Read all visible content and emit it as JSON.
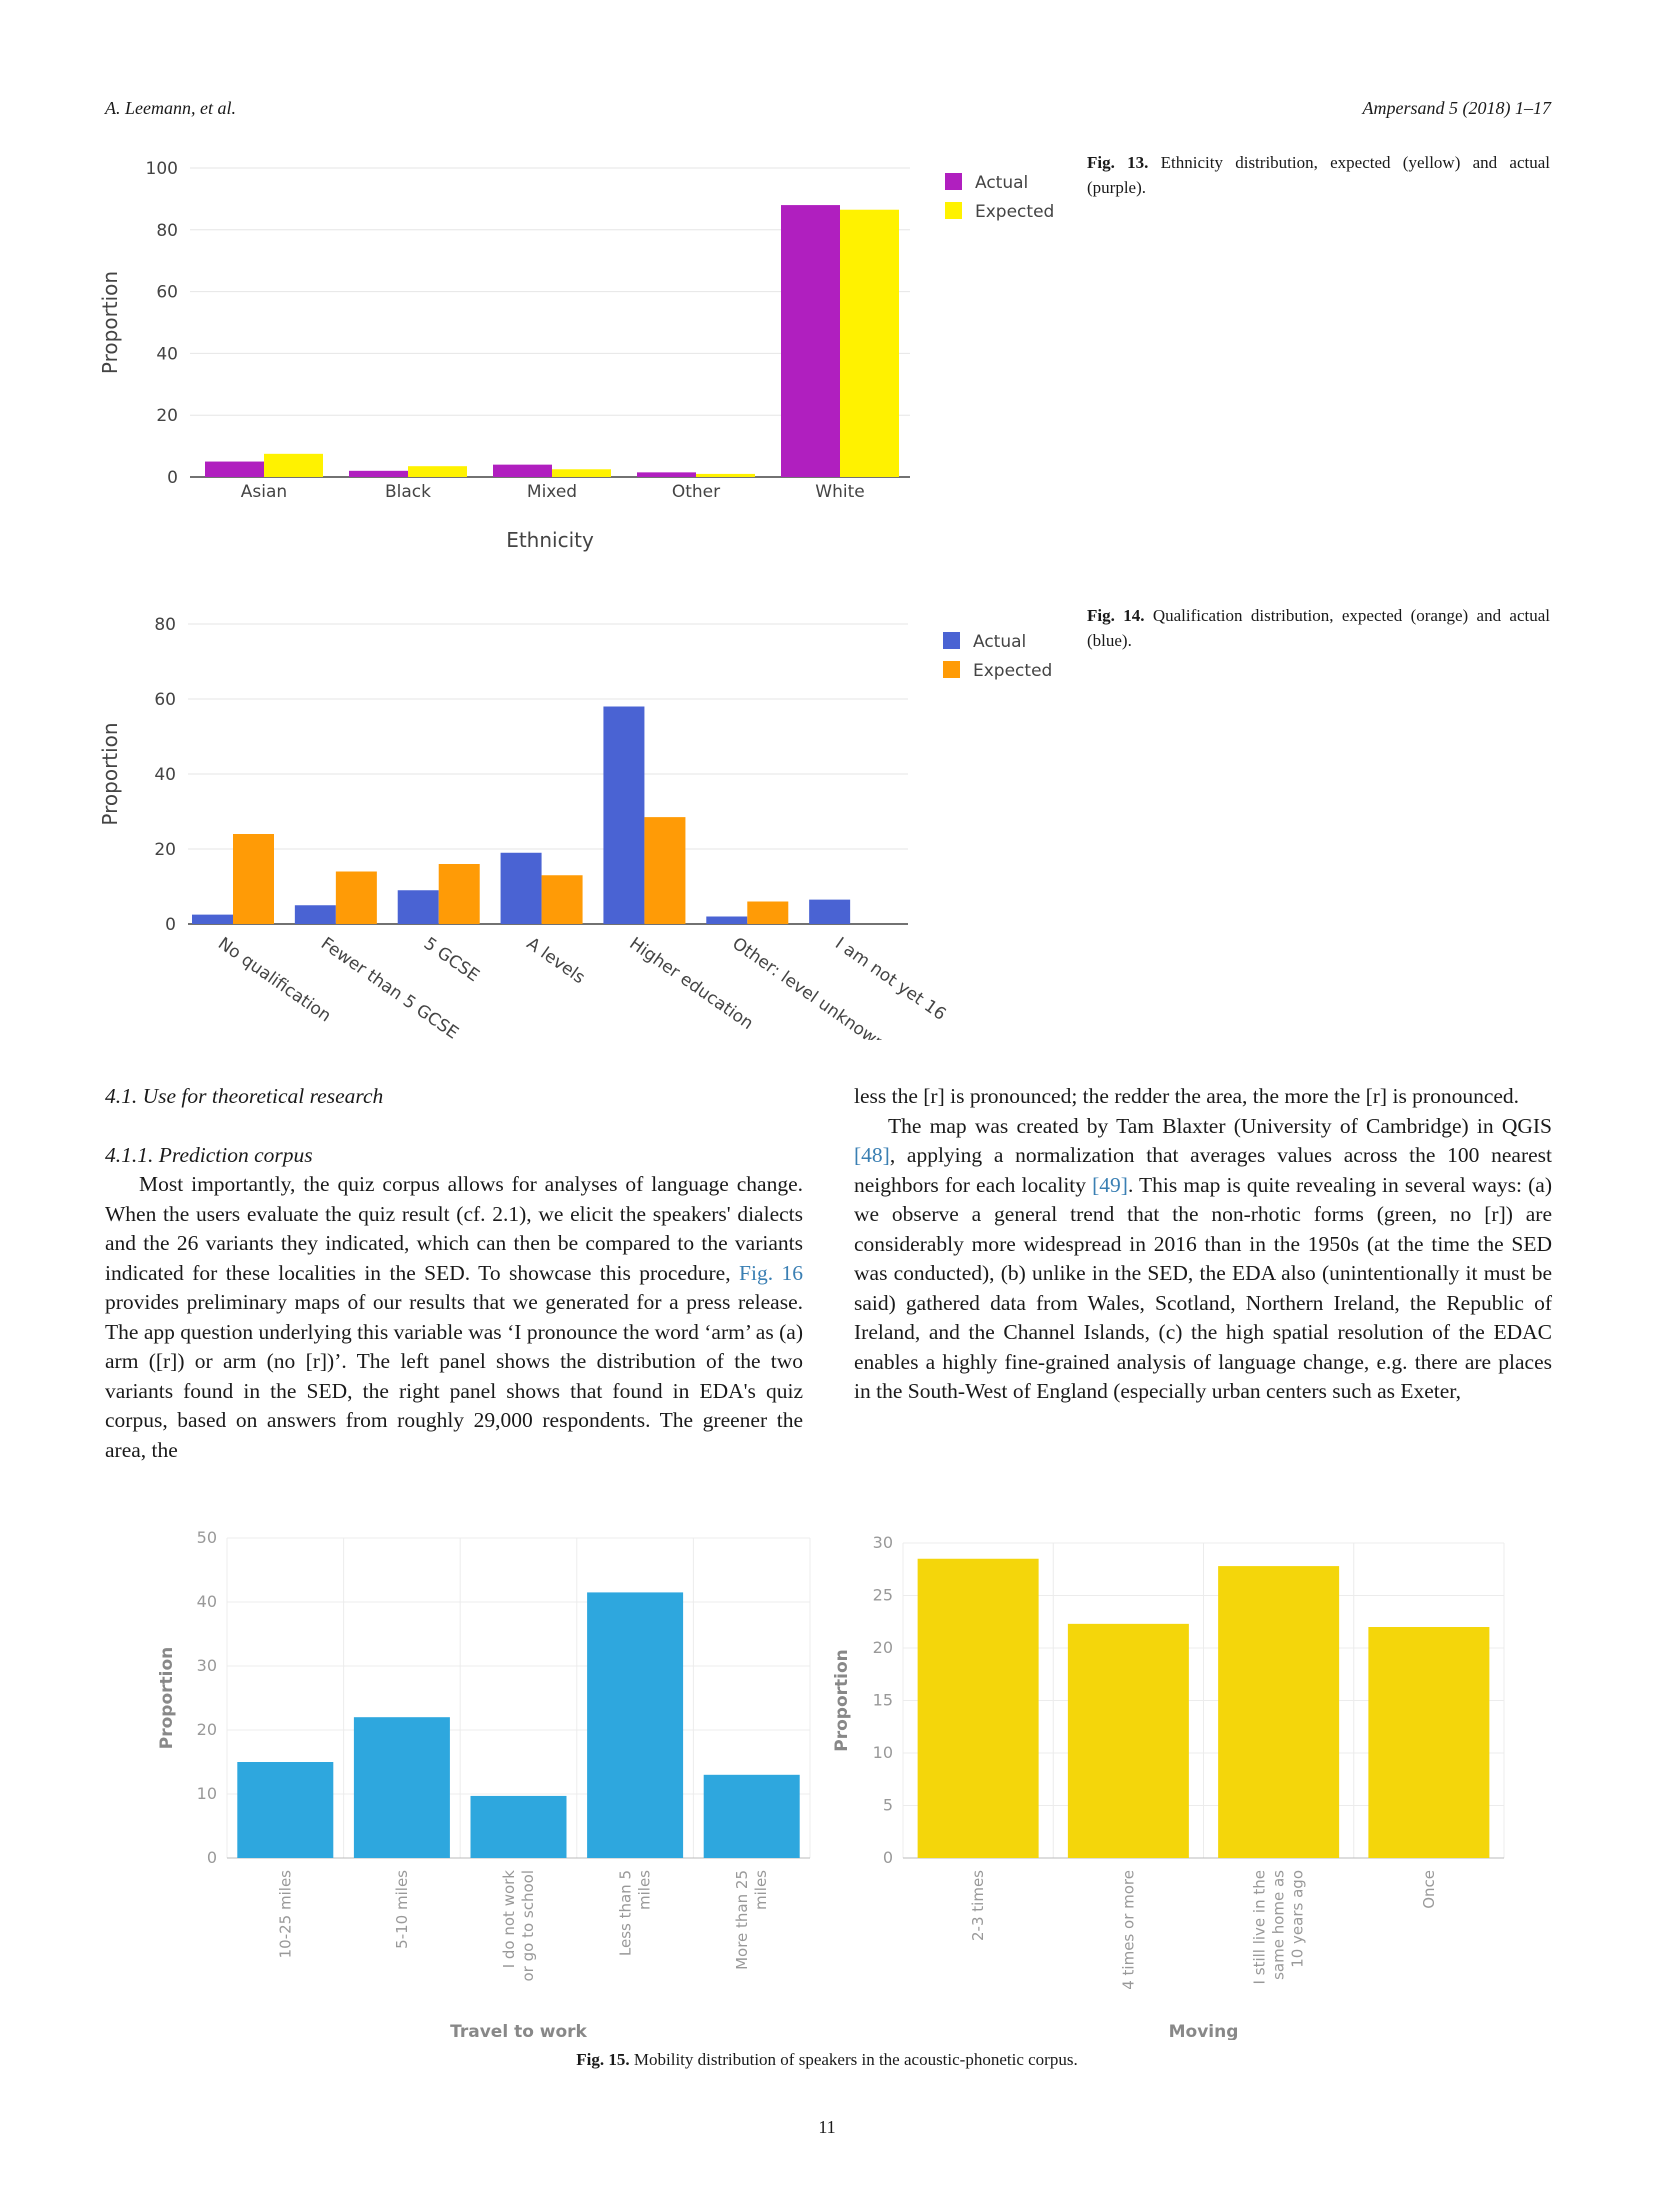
{
  "header": {
    "left": "A. Leemann, et al.",
    "right": "Ampersand 5 (2018) 1–17"
  },
  "fig13": {
    "label": "Fig. 13.",
    "caption": "Ethnicity distribution, expected (yellow) and actual (purple).",
    "chart_data": {
      "type": "bar",
      "categories": [
        "Asian",
        "Black",
        "Mixed",
        "Other",
        "White"
      ],
      "series": [
        {
          "name": "Actual",
          "values": [
            5,
            2,
            4,
            1.5,
            88
          ],
          "color": "#b01fbf"
        },
        {
          "name": "Expected",
          "values": [
            7.5,
            3.5,
            2.5,
            1,
            86.5
          ],
          "color": "#fff200"
        }
      ],
      "xlabel": "Ethnicity",
      "ylabel": "Proportion",
      "ylim": [
        0,
        100
      ],
      "yticks": [
        "0",
        "20",
        "40",
        "60",
        "80",
        "100"
      ],
      "grid": true,
      "legend": "right"
    }
  },
  "fig14": {
    "label": "Fig. 14.",
    "caption": "Qualification distribution, expected (orange) and actual (blue).",
    "chart_data": {
      "type": "bar",
      "categories": [
        "No qualification",
        "Fewer than 5 GCSE",
        "5 GCSE",
        "A levels",
        "Higher education",
        "Other: level unknown",
        "I am not yet 16"
      ],
      "series": [
        {
          "name": "Actual",
          "values": [
            2.5,
            5,
            9,
            19,
            58,
            2,
            6.5
          ],
          "color": "#4a63d3"
        },
        {
          "name": "Expected",
          "values": [
            24,
            14,
            16,
            13,
            28.5,
            6,
            0
          ],
          "color": "#ff9b06"
        }
      ],
      "xlabel": "",
      "ylabel": "Proportion",
      "ylim": [
        0,
        80
      ],
      "yticks": [
        "0",
        "20",
        "40",
        "60",
        "80"
      ],
      "grid": true,
      "legend": "right"
    }
  },
  "section": {
    "heading": "4.1.  Use for theoretical research",
    "subheading": "4.1.1.  Prediction corpus",
    "left_col": {
      "p1_a": "Most importantly, the quiz corpus allows for analyses of language change. When the users evaluate the quiz result (cf. 2.1), we elicit the speakers' dialects and the 26 variants they indicated, which can then be compared to the variants indicated for these localities in the SED. To showcase this procedure, ",
      "p1_link": "Fig. 16",
      "p1_b": " provides preliminary maps of our results that we generated for a press release. The app question underlying this variable was ‘I pronounce the word ‘arm’ as (a) arm ([r]) or arm (no [r])’. The left panel shows the distribution of the two variants found in the SED, the right panel shows that found in EDA's quiz corpus, based on answers from roughly 29,000 respondents. The greener the area, the"
    },
    "right_col": {
      "p1": "less the [r] is pronounced; the redder the area, the more the [r] is pronounced.",
      "p2_a": "The map was created by Tam Blaxter (University of Cambridge) in QGIS ",
      "p2_ref1": "[48]",
      "p2_b": ", applying a normalization that averages values across the 100 nearest neighbors for each locality ",
      "p2_ref2": "[49]",
      "p2_c": ". This map is quite revealing in several ways: (a) we observe a general trend that the non-rhotic forms (green, no [r]) are considerably more widespread in 2016 than in the 1950s (at the time the SED was conducted), (b) unlike in the SED, the EDA also (unintentionally it must be said) gathered data from Wales, Scotland, Northern Ireland, the Republic of Ireland, and the Channel Islands, (c) the high spatial resolution of the EDAC enables a highly fine-grained analysis of language change, e.g. there are places in the South-West of England (especially urban centers such as Exeter,"
    }
  },
  "fig15": {
    "label": "Fig. 15.",
    "caption": "Mobility distribution of speakers in the acoustic-phonetic corpus.",
    "chart_data": [
      {
        "type": "bar",
        "categories": [
          "10-25 miles",
          "5-10 miles",
          "I do not work or go to school",
          "Less than 5 miles",
          "More than 25 miles"
        ],
        "category_lines": [
          [
            "10-25 miles"
          ],
          [
            "5-10 miles"
          ],
          [
            "I do not work",
            "or go to school"
          ],
          [
            "Less than 5",
            "miles"
          ],
          [
            "More than 25",
            "miles"
          ]
        ],
        "values": [
          15,
          22,
          9.7,
          41.5,
          13
        ],
        "color": "#2ea7de",
        "xlabel": "Travel to work",
        "ylabel": "Proportion",
        "ylim": [
          0,
          50
        ],
        "yticks": [
          "0",
          "10",
          "20",
          "30",
          "40",
          "50"
        ],
        "grid": true
      },
      {
        "type": "bar",
        "categories": [
          "2-3 times",
          "4 times or more",
          "I still live in the same home as 10 years ago",
          "Once"
        ],
        "category_lines": [
          [
            "2-3 times"
          ],
          [
            "4 times or more"
          ],
          [
            "I still live in the",
            "same home as",
            "10 years ago"
          ],
          [
            "Once"
          ]
        ],
        "values": [
          28.5,
          22.3,
          27.8,
          22
        ],
        "color": "#f4d60b",
        "xlabel": "Moving",
        "ylabel": "Proportion",
        "ylim": [
          0,
          30
        ],
        "yticks": [
          "0",
          "5",
          "10",
          "15",
          "20",
          "25",
          "30"
        ],
        "grid": true
      }
    ]
  },
  "page_number": "11"
}
